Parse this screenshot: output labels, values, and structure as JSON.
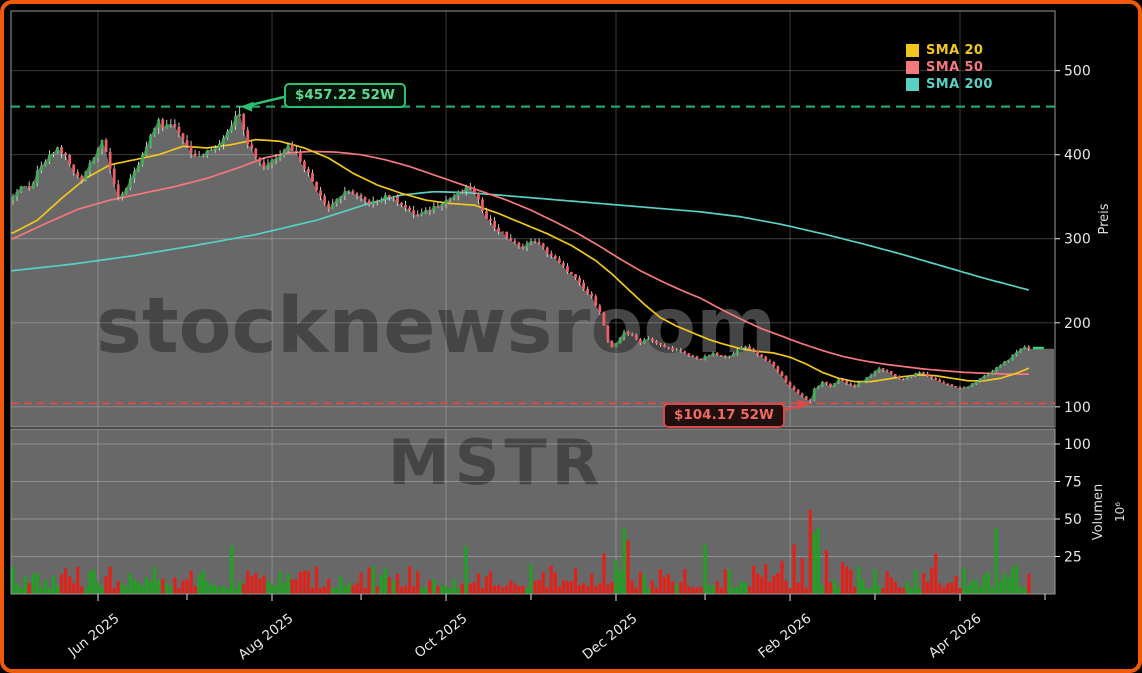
{
  "watermarks": {
    "site": "stocknewsroom",
    "symbol": "MSTR"
  },
  "legend": [
    {
      "label": "SMA 20",
      "color": "#f2c71d"
    },
    {
      "label": "SMA 50",
      "color": "#f4787d"
    },
    {
      "label": "SMA 200",
      "color": "#58d0c4"
    }
  ],
  "annotations": {
    "high": {
      "label": "$457.22 52W",
      "value": 457.22,
      "day": 56,
      "color": "#2fbf71",
      "text_color": "#5bd991"
    },
    "low": {
      "label": "$104.17 52W",
      "value": 104.17,
      "day": 197,
      "color": "#d94b4b",
      "text_color": "#ef6a60"
    }
  },
  "axes": {
    "price_label": "Preis",
    "volume_label": "Volumen",
    "volume_scale_label": "10⁶",
    "price_ticks": [
      100,
      200,
      300,
      400,
      500
    ],
    "volume_ticks": [
      25,
      50,
      75,
      100
    ],
    "x_major_ticks": [
      {
        "label": "Jun 2025",
        "day": 21
      },
      {
        "label": "Aug 2025",
        "day": 64
      },
      {
        "label": "Oct 2025",
        "day": 107
      },
      {
        "label": "Dec 2025",
        "day": 149
      },
      {
        "label": "Feb 2026",
        "day": 192
      },
      {
        "label": "Apr 2026",
        "day": 234
      }
    ],
    "x_minor_tick_days": [
      43,
      86,
      128,
      171,
      213,
      255
    ]
  },
  "chart_data": {
    "type": "candlestick+volume",
    "x_unit": "trading_days_from_2025-05-05",
    "x_range_days": 252,
    "price_ylim": [
      76,
      571
    ],
    "volume_ylim": [
      0,
      110
    ],
    "grid": true,
    "legend_position": "top-right",
    "last_price": 170,
    "high_52w": 457.22,
    "low_52w": 104.17,
    "seed": 7,
    "noise_pct": 0.008,
    "wick_pct": 0.016,
    "close_keyframes": [
      [
        0,
        352
      ],
      [
        2,
        362
      ],
      [
        4,
        358
      ],
      [
        6,
        378
      ],
      [
        8,
        392
      ],
      [
        11,
        408
      ],
      [
        13,
        398
      ],
      [
        15,
        378
      ],
      [
        17,
        372
      ],
      [
        19,
        390
      ],
      [
        22,
        418
      ],
      [
        24,
        382
      ],
      [
        26,
        350
      ],
      [
        28,
        360
      ],
      [
        30,
        378
      ],
      [
        32,
        398
      ],
      [
        34,
        420
      ],
      [
        36,
        444
      ],
      [
        37,
        430
      ],
      [
        39,
        438
      ],
      [
        41,
        428
      ],
      [
        43,
        412
      ],
      [
        45,
        396
      ],
      [
        47,
        400
      ],
      [
        49,
        406
      ],
      [
        51,
        414
      ],
      [
        53,
        430
      ],
      [
        55,
        444
      ],
      [
        56,
        452
      ],
      [
        57,
        432
      ],
      [
        58,
        415
      ],
      [
        60,
        398
      ],
      [
        62,
        386
      ],
      [
        64,
        394
      ],
      [
        66,
        402
      ],
      [
        68,
        412
      ],
      [
        70,
        402
      ],
      [
        72,
        386
      ],
      [
        74,
        368
      ],
      [
        76,
        352
      ],
      [
        78,
        336
      ],
      [
        80,
        348
      ],
      [
        82,
        354
      ],
      [
        84,
        356
      ],
      [
        86,
        348
      ],
      [
        88,
        340
      ],
      [
        90,
        346
      ],
      [
        92,
        352
      ],
      [
        94,
        348
      ],
      [
        96,
        342
      ],
      [
        98,
        332
      ],
      [
        100,
        328
      ],
      [
        102,
        332
      ],
      [
        104,
        338
      ],
      [
        106,
        344
      ],
      [
        108,
        348
      ],
      [
        110,
        354
      ],
      [
        113,
        362
      ],
      [
        115,
        344
      ],
      [
        117,
        326
      ],
      [
        119,
        314
      ],
      [
        121,
        306
      ],
      [
        123,
        298
      ],
      [
        125,
        290
      ],
      [
        127,
        294
      ],
      [
        129,
        298
      ],
      [
        131,
        288
      ],
      [
        133,
        280
      ],
      [
        135,
        270
      ],
      [
        137,
        262
      ],
      [
        139,
        252
      ],
      [
        141,
        240
      ],
      [
        143,
        230
      ],
      [
        145,
        214
      ],
      [
        146,
        196
      ],
      [
        147,
        178
      ],
      [
        148,
        170
      ],
      [
        149,
        174
      ],
      [
        151,
        190
      ],
      [
        153,
        184
      ],
      [
        155,
        177
      ],
      [
        157,
        182
      ],
      [
        159,
        175
      ],
      [
        161,
        171
      ],
      [
        164,
        167
      ],
      [
        167,
        161
      ],
      [
        170,
        157
      ],
      [
        173,
        163
      ],
      [
        176,
        159
      ],
      [
        179,
        167
      ],
      [
        181,
        172
      ],
      [
        182,
        170
      ],
      [
        184,
        163
      ],
      [
        186,
        156
      ],
      [
        188,
        148
      ],
      [
        190,
        136
      ],
      [
        192,
        124
      ],
      [
        194,
        116
      ],
      [
        196,
        109
      ],
      [
        197,
        107
      ],
      [
        198,
        121
      ],
      [
        200,
        129
      ],
      [
        202,
        124
      ],
      [
        204,
        133
      ],
      [
        206,
        127
      ],
      [
        208,
        125
      ],
      [
        210,
        131
      ],
      [
        212,
        138
      ],
      [
        214,
        146
      ],
      [
        216,
        142
      ],
      [
        218,
        136
      ],
      [
        220,
        133
      ],
      [
        222,
        137
      ],
      [
        224,
        141
      ],
      [
        226,
        137
      ],
      [
        228,
        132
      ],
      [
        230,
        128
      ],
      [
        232,
        125
      ],
      [
        234,
        121
      ],
      [
        236,
        125
      ],
      [
        238,
        131
      ],
      [
        240,
        136
      ],
      [
        242,
        142
      ],
      [
        244,
        150
      ],
      [
        246,
        157
      ],
      [
        248,
        164
      ],
      [
        250,
        172
      ],
      [
        251,
        170
      ]
    ],
    "sma20_keyframes": [
      [
        0,
        307
      ],
      [
        6,
        322
      ],
      [
        12,
        348
      ],
      [
        18,
        372
      ],
      [
        24,
        388
      ],
      [
        30,
        394
      ],
      [
        36,
        400
      ],
      [
        42,
        410
      ],
      [
        48,
        408
      ],
      [
        54,
        412
      ],
      [
        60,
        418
      ],
      [
        66,
        416
      ],
      [
        72,
        408
      ],
      [
        78,
        396
      ],
      [
        84,
        378
      ],
      [
        90,
        364
      ],
      [
        96,
        354
      ],
      [
        102,
        346
      ],
      [
        108,
        342
      ],
      [
        114,
        340
      ],
      [
        120,
        330
      ],
      [
        126,
        318
      ],
      [
        132,
        306
      ],
      [
        138,
        292
      ],
      [
        144,
        274
      ],
      [
        148,
        258
      ],
      [
        152,
        240
      ],
      [
        156,
        222
      ],
      [
        160,
        206
      ],
      [
        164,
        196
      ],
      [
        168,
        188
      ],
      [
        172,
        180
      ],
      [
        176,
        174
      ],
      [
        180,
        169
      ],
      [
        184,
        166
      ],
      [
        188,
        164
      ],
      [
        192,
        159
      ],
      [
        196,
        151
      ],
      [
        200,
        141
      ],
      [
        204,
        134
      ],
      [
        208,
        130
      ],
      [
        212,
        130
      ],
      [
        216,
        133
      ],
      [
        220,
        136
      ],
      [
        224,
        138
      ],
      [
        228,
        137
      ],
      [
        232,
        134
      ],
      [
        236,
        131
      ],
      [
        240,
        131
      ],
      [
        244,
        134
      ],
      [
        248,
        140
      ],
      [
        251,
        146
      ]
    ],
    "sma50_keyframes": [
      [
        0,
        300
      ],
      [
        8,
        318
      ],
      [
        16,
        335
      ],
      [
        24,
        346
      ],
      [
        32,
        354
      ],
      [
        40,
        362
      ],
      [
        48,
        372
      ],
      [
        56,
        385
      ],
      [
        62,
        396
      ],
      [
        68,
        402
      ],
      [
        74,
        404
      ],
      [
        80,
        403
      ],
      [
        86,
        400
      ],
      [
        92,
        394
      ],
      [
        98,
        386
      ],
      [
        104,
        376
      ],
      [
        110,
        366
      ],
      [
        116,
        356
      ],
      [
        122,
        346
      ],
      [
        128,
        334
      ],
      [
        134,
        320
      ],
      [
        140,
        305
      ],
      [
        145,
        291
      ],
      [
        150,
        276
      ],
      [
        155,
        262
      ],
      [
        160,
        250
      ],
      [
        165,
        239
      ],
      [
        170,
        229
      ],
      [
        175,
        216
      ],
      [
        180,
        204
      ],
      [
        185,
        193
      ],
      [
        190,
        184
      ],
      [
        195,
        175
      ],
      [
        200,
        167
      ],
      [
        205,
        160
      ],
      [
        210,
        155
      ],
      [
        215,
        151
      ],
      [
        220,
        148
      ],
      [
        225,
        145
      ],
      [
        230,
        143
      ],
      [
        235,
        141
      ],
      [
        240,
        140
      ],
      [
        245,
        139
      ],
      [
        251,
        139
      ]
    ],
    "sma200_keyframes": [
      [
        0,
        262
      ],
      [
        15,
        270
      ],
      [
        30,
        280
      ],
      [
        45,
        292
      ],
      [
        60,
        305
      ],
      [
        75,
        322
      ],
      [
        88,
        342
      ],
      [
        96,
        352
      ],
      [
        104,
        356
      ],
      [
        112,
        355
      ],
      [
        120,
        352
      ],
      [
        130,
        348
      ],
      [
        140,
        344
      ],
      [
        150,
        340
      ],
      [
        160,
        336
      ],
      [
        170,
        332
      ],
      [
        180,
        326
      ],
      [
        190,
        317
      ],
      [
        200,
        306
      ],
      [
        210,
        294
      ],
      [
        220,
        281
      ],
      [
        230,
        267
      ],
      [
        240,
        253
      ],
      [
        251,
        239
      ]
    ],
    "volume_base": 4,
    "volume_rand": 15,
    "volume_spikes": {
      "54": 22,
      "112": 15,
      "128": 13,
      "146": 16,
      "149": 14,
      "151": 34,
      "152": 20,
      "160": 12,
      "171": 26,
      "176": 12,
      "186": 14,
      "190": 18,
      "193": 24,
      "195": 16,
      "197": 52,
      "198": 28,
      "199": 32,
      "201": 14,
      "205": 12,
      "213": 10,
      "228": 10,
      "235": 12,
      "243": 25,
      "245": 10,
      "248": 8
    },
    "colors": {
      "bg": "#000000",
      "border": "#f05a0a",
      "fill_area": "#686868",
      "grid": "#ffffff42",
      "watermark": "#454545",
      "candle_up": "#3cb054",
      "candle_down": "#ef5f66",
      "wick": "#d9d9d9",
      "vol_up": "#21a121",
      "vol_down": "#e0221a",
      "high_line": "#27a567",
      "low_line": "#d94b4b",
      "spine": "#9a9a9a",
      "tick_text": "#e8e8e8",
      "last_price_marker": "#3ad07f"
    }
  }
}
